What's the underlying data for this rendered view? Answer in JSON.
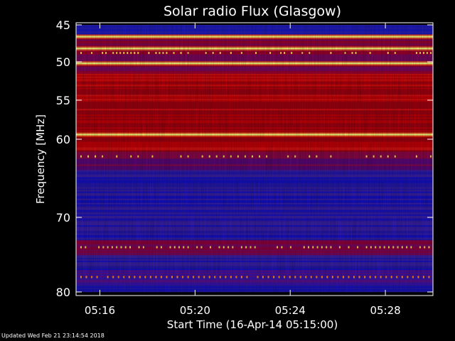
{
  "updated_text": "Updated Wed Feb 21 23:14:54 2018",
  "chart_data": {
    "type": "heatmap",
    "title": "Solar radio Flux (Glasgow)",
    "xlabel": "Start Time (16-Apr-14 05:15:00)",
    "ylabel": "Frequency [MHz]",
    "x_ticks": [
      "05:16",
      "05:20",
      "05:24",
      "05:28"
    ],
    "x_tick_minutes": [
      16,
      20,
      24,
      28
    ],
    "xlim_minutes": [
      15,
      30.0
    ],
    "y_ticks": [
      45,
      50,
      55,
      60,
      70,
      80
    ],
    "ylim": [
      45,
      80
    ],
    "y_scale": "nonlinear-frequency",
    "colors": {
      "low": "#1010c0",
      "mid": "#c00000",
      "high": "#ffff80",
      "background": "#000000"
    },
    "bright_lines_mhz": [
      46.6,
      48.2,
      50.2,
      59.4
    ],
    "red_band_mhz": [
      51.5,
      61.5
    ]
  }
}
